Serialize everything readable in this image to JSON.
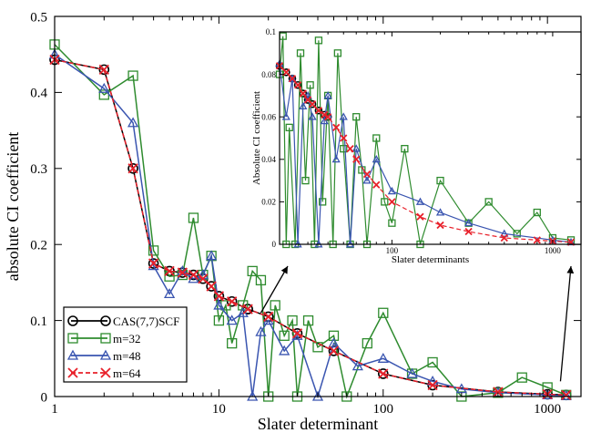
{
  "chart_data": [
    {
      "type": "line",
      "xscale": "log",
      "xlabel": "Slater determinant",
      "ylabel": "absolute CI coefficient",
      "xlim": [
        1,
        1600
      ],
      "ylim": [
        0,
        0.5
      ],
      "xticks": [
        "1",
        "10",
        "100",
        "1000"
      ],
      "yticks": [
        "0",
        "0.1",
        "0.2",
        "0.3",
        "0.4",
        "0.5"
      ],
      "legend_position": "bottom-left",
      "series": [
        {
          "name": "CAS(7,7)SCF",
          "color": "#000000",
          "marker": "circle",
          "x": [
            1,
            2,
            3,
            4,
            5,
            6,
            7,
            8,
            9,
            10,
            12,
            15,
            20,
            30,
            50,
            100,
            200,
            500,
            1000,
            1300
          ],
          "y": [
            0.443,
            0.43,
            0.3,
            0.175,
            0.165,
            0.163,
            0.16,
            0.155,
            0.145,
            0.132,
            0.125,
            0.115,
            0.105,
            0.083,
            0.06,
            0.03,
            0.015,
            0.006,
            0.003,
            0.002
          ]
        },
        {
          "name": "m=32",
          "color": "#2e8b2e",
          "marker": "square",
          "x": [
            1,
            2,
            3,
            4,
            5,
            6,
            7,
            8,
            9,
            10,
            11,
            12,
            14,
            16,
            18,
            20,
            22,
            25,
            28,
            30,
            35,
            40,
            50,
            60,
            80,
            100,
            150,
            200,
            300,
            500,
            700,
            1000,
            1300
          ],
          "y": [
            0.463,
            0.397,
            0.422,
            0.192,
            0.158,
            0.16,
            0.235,
            0.16,
            0.185,
            0.1,
            0.12,
            0.07,
            0.12,
            0.165,
            0.153,
            0.0,
            0.12,
            0.08,
            0.1,
            0.0,
            0.1,
            0.065,
            0.08,
            0.0,
            0.07,
            0.11,
            0.03,
            0.045,
            0.0,
            0.005,
            0.025,
            0.012,
            0.002
          ]
        },
        {
          "name": "m=48",
          "color": "#3a55b0",
          "marker": "triangle",
          "x": [
            1,
            2,
            3,
            4,
            5,
            6,
            7,
            8,
            9,
            10,
            12,
            14,
            16,
            18,
            20,
            25,
            30,
            40,
            50,
            70,
            100,
            150,
            200,
            300,
            500,
            1000,
            1300
          ],
          "y": [
            0.45,
            0.405,
            0.36,
            0.172,
            0.135,
            0.165,
            0.155,
            0.16,
            0.185,
            0.12,
            0.1,
            0.11,
            0.0,
            0.085,
            0.1,
            0.06,
            0.08,
            0.0,
            0.07,
            0.04,
            0.05,
            0.03,
            0.02,
            0.01,
            0.005,
            0.002,
            0.001
          ]
        },
        {
          "name": "m=64",
          "color": "#e8202a",
          "marker": "x",
          "dashed": true,
          "x": [
            1,
            2,
            3,
            4,
            5,
            6,
            7,
            8,
            9,
            10,
            12,
            15,
            20,
            30,
            50,
            100,
            200,
            500,
            1000,
            1300
          ],
          "y": [
            0.443,
            0.43,
            0.3,
            0.175,
            0.165,
            0.163,
            0.16,
            0.155,
            0.145,
            0.132,
            0.125,
            0.115,
            0.105,
            0.083,
            0.06,
            0.03,
            0.015,
            0.006,
            0.003,
            0.002
          ]
        }
      ]
    },
    {
      "type": "line",
      "xscale": "log",
      "xlabel": "Slater determinants",
      "ylabel": "Absolute CI coefficient",
      "xlim": [
        20,
        1500
      ],
      "ylim": [
        0,
        0.1
      ],
      "xticks": [
        "100",
        "1000"
      ],
      "yticks": [
        "0",
        "0.02",
        "0.04",
        "0.06",
        "0.08",
        "0.1"
      ],
      "series": [
        {
          "name": "CAS(7,7)SCF",
          "color": "#000000",
          "marker": "circle",
          "x": [
            20,
            22,
            24,
            26,
            28,
            30,
            32,
            35,
            38,
            40
          ],
          "y": [
            0.084,
            0.081,
            0.078,
            0.075,
            0.071,
            0.068,
            0.066,
            0.063,
            0.061,
            0.06
          ]
        },
        {
          "name": "m=32",
          "color": "#2e8b2e",
          "marker": "square",
          "x": [
            20,
            21,
            22,
            23,
            25,
            27,
            29,
            31,
            33,
            35,
            37,
            40,
            43,
            46,
            50,
            55,
            60,
            65,
            70,
            80,
            90,
            100,
            120,
            150,
            200,
            300,
            400,
            600,
            800,
            1000,
            1300
          ],
          "y": [
            0.08,
            0.098,
            0.0,
            0.055,
            0.0,
            0.09,
            0.03,
            0.075,
            0.0,
            0.096,
            0.02,
            0.07,
            0.0,
            0.09,
            0.045,
            0.0,
            0.06,
            0.035,
            0.0,
            0.05,
            0.02,
            0.01,
            0.045,
            0.0,
            0.03,
            0.01,
            0.02,
            0.005,
            0.015,
            0.003,
            0.002
          ]
        },
        {
          "name": "m=48",
          "color": "#3a55b0",
          "marker": "triangle",
          "x": [
            20,
            22,
            24,
            26,
            28,
            30,
            32,
            35,
            38,
            40,
            45,
            50,
            55,
            60,
            70,
            80,
            100,
            150,
            200,
            300,
            500,
            1000,
            1300
          ],
          "y": [
            0.085,
            0.06,
            0.078,
            0.0,
            0.065,
            0.07,
            0.06,
            0.0,
            0.058,
            0.07,
            0.04,
            0.06,
            0.0,
            0.045,
            0.03,
            0.04,
            0.025,
            0.02,
            0.015,
            0.01,
            0.005,
            0.002,
            0.001
          ]
        },
        {
          "name": "m=64",
          "color": "#e8202a",
          "marker": "x",
          "dashed": true,
          "x": [
            20,
            22,
            24,
            26,
            28,
            30,
            32,
            35,
            38,
            40,
            45,
            50,
            55,
            60,
            70,
            80,
            100,
            150,
            200,
            300,
            500,
            800,
            1000,
            1300
          ],
          "y": [
            0.084,
            0.081,
            0.078,
            0.075,
            0.071,
            0.068,
            0.066,
            0.063,
            0.061,
            0.06,
            0.055,
            0.05,
            0.045,
            0.04,
            0.033,
            0.028,
            0.02,
            0.013,
            0.009,
            0.006,
            0.003,
            0.002,
            0.0015,
            0.001
          ]
        }
      ]
    }
  ]
}
